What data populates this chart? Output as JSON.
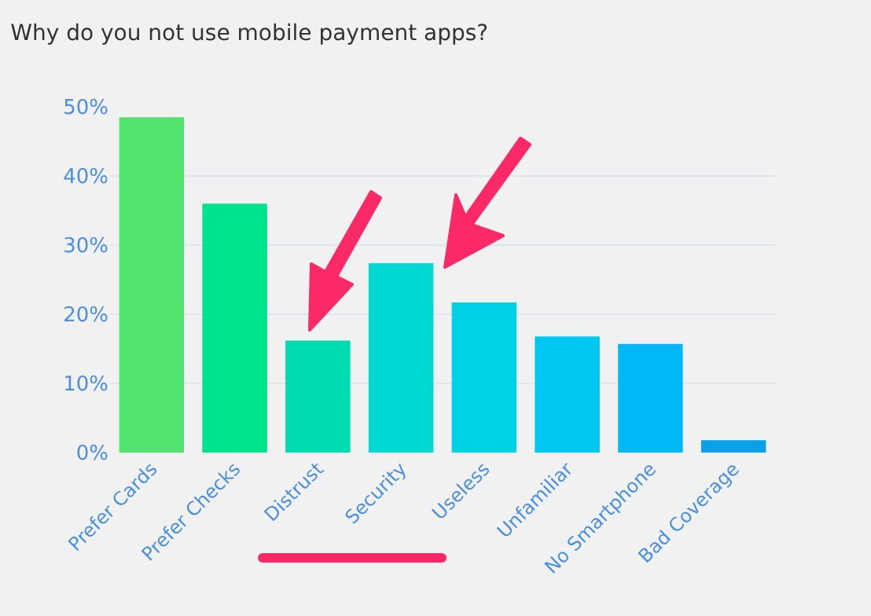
{
  "chart_data": {
    "type": "bar",
    "title": "Why do you not use mobile payment apps?",
    "categories": [
      "Prefer Cards",
      "Prefer Checks",
      "Distrust",
      "Security",
      "Useless",
      "Unfamiliar",
      "No Smartphone",
      "Bad Coverage"
    ],
    "values": [
      48.5,
      36,
      16.2,
      27.4,
      21.7,
      16.8,
      15.7,
      1.8
    ],
    "colors": [
      "#52e36f",
      "#00e38e",
      "#00dcb0",
      "#00d9d2",
      "#00d2e6",
      "#00c6f2",
      "#00b8f6",
      "#0aa0ea"
    ],
    "ylim": [
      0,
      50
    ],
    "yticks": [
      {
        "value": 0,
        "label": "0%"
      },
      {
        "value": 10,
        "label": "10%"
      },
      {
        "value": 20,
        "label": "20%"
      },
      {
        "value": 30,
        "label": "30%"
      },
      {
        "value": 40,
        "label": "40%"
      },
      {
        "value": 50,
        "label": "50%"
      }
    ],
    "grid": "y"
  }
}
